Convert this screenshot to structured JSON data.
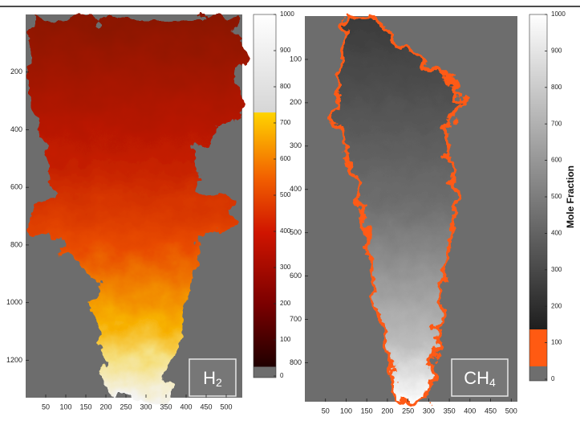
{
  "chart_data": [
    {
      "type": "image",
      "label": "H",
      "label_sub": "2",
      "xlim": [
        0,
        540
      ],
      "xticks": [
        50,
        100,
        150,
        200,
        250,
        300,
        350,
        400,
        450,
        500
      ],
      "ylim": [
        0,
        1330
      ],
      "yticks": [
        200,
        400,
        600,
        800,
        1000,
        1200
      ],
      "clim": [
        0,
        1000
      ],
      "colorbar_ticks": [
        0,
        100,
        200,
        300,
        400,
        500,
        600,
        700,
        800,
        900,
        1000
      ]
    },
    {
      "type": "image",
      "label": "CH",
      "label_sub": "4",
      "xlim": [
        0,
        515
      ],
      "xticks": [
        50,
        100,
        150,
        200,
        250,
        300,
        350,
        400,
        450,
        500
      ],
      "ylim": [
        0,
        890
      ],
      "yticks": [
        100,
        200,
        300,
        400,
        500,
        600,
        700,
        800
      ],
      "clim": [
        0,
        1000
      ],
      "colorbar_ticks": [
        0,
        100,
        200,
        300,
        400,
        500,
        600,
        700,
        800,
        900,
        1000
      ],
      "colorbar_label": "Mole Fraction"
    }
  ]
}
